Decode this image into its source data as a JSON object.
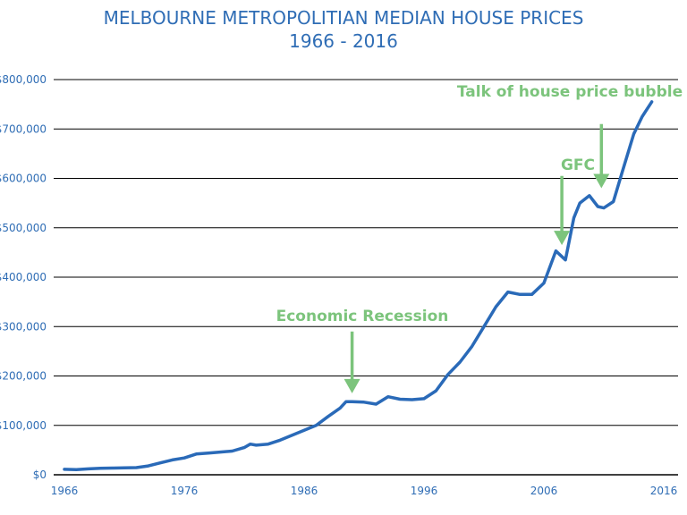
{
  "chart_data": {
    "type": "line",
    "title": "MELBOURNE METROPOLITIAN MEDIAN HOUSE PRICES",
    "subtitle": "1966 - 2016",
    "xlabel": "",
    "ylabel": "",
    "xlim": [
      1966,
      2016
    ],
    "ylim": [
      0,
      800000
    ],
    "grid": "horizontal",
    "x_ticks": [
      1966,
      1976,
      1986,
      1996,
      2006,
      2016
    ],
    "y_ticks": [
      0,
      100000,
      200000,
      300000,
      400000,
      500000,
      600000,
      700000,
      800000
    ],
    "y_tick_labels": [
      "$0",
      "$100,000",
      "$200,000",
      "$300,000",
      "$400,000",
      "$500,000",
      "$600,000",
      "$700,000",
      "$800,000"
    ],
    "series": [
      {
        "color": "#2a6ab8",
        "points": [
          [
            1966,
            11000
          ],
          [
            1967,
            10500
          ],
          [
            1968,
            12000
          ],
          [
            1969,
            13000
          ],
          [
            1970,
            13500
          ],
          [
            1971,
            14000
          ],
          [
            1972,
            14500
          ],
          [
            1973,
            18000
          ],
          [
            1974,
            24000
          ],
          [
            1975,
            30000
          ],
          [
            1976,
            34000
          ],
          [
            1977,
            42000
          ],
          [
            1978,
            44000
          ],
          [
            1979,
            46000
          ],
          [
            1980,
            48000
          ],
          [
            1981,
            55000
          ],
          [
            1981.5,
            62000
          ],
          [
            1982,
            60000
          ],
          [
            1983,
            62000
          ],
          [
            1984,
            70000
          ],
          [
            1985,
            80000
          ],
          [
            1986,
            90000
          ],
          [
            1987,
            100000
          ],
          [
            1988,
            118000
          ],
          [
            1989,
            135000
          ],
          [
            1989.5,
            148000
          ],
          [
            1990,
            148000
          ],
          [
            1991,
            147000
          ],
          [
            1992,
            143000
          ],
          [
            1993,
            158000
          ],
          [
            1994,
            153000
          ],
          [
            1995,
            152000
          ],
          [
            1996,
            154000
          ],
          [
            1997,
            170000
          ],
          [
            1998,
            203000
          ],
          [
            1999,
            228000
          ],
          [
            2000,
            260000
          ],
          [
            2001,
            300000
          ],
          [
            2002,
            340000
          ],
          [
            2003,
            370000
          ],
          [
            2004,
            365000
          ],
          [
            2005,
            365000
          ],
          [
            2006,
            388000
          ],
          [
            2007,
            453000
          ],
          [
            2007.8,
            435000
          ],
          [
            2008.5,
            520000
          ],
          [
            2009,
            550000
          ],
          [
            2009.8,
            565000
          ],
          [
            2010.5,
            543000
          ],
          [
            2011,
            540000
          ],
          [
            2011.8,
            553000
          ],
          [
            2012.5,
            610000
          ],
          [
            2013.5,
            690000
          ],
          [
            2014.2,
            725000
          ],
          [
            2015,
            755000
          ]
        ]
      }
    ],
    "annotations": [
      {
        "text": "Economic Recession",
        "arrow_x": 1990,
        "arrow_top_y": 290000,
        "arrow_tip_y": 165000
      },
      {
        "text": "GFC",
        "arrow_x": 2007.5,
        "arrow_top_y": 605000,
        "arrow_tip_y": 465000
      },
      {
        "text": "Talk of house price bubble",
        "arrow_x": 2010.8,
        "arrow_top_y": 710000,
        "arrow_tip_y": 580000
      }
    ]
  }
}
